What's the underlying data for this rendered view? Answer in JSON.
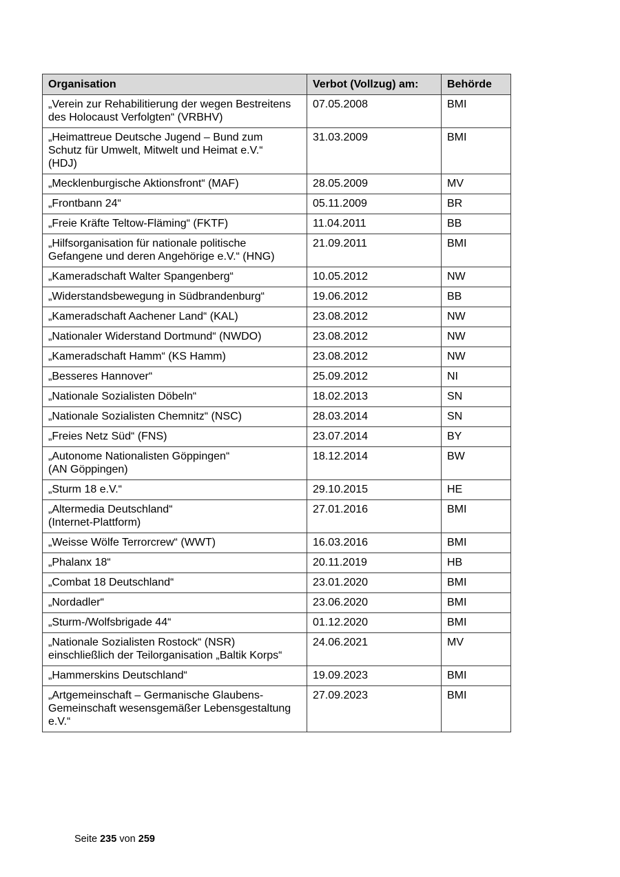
{
  "table": {
    "headers": [
      "Organisation",
      "Verbot (Vollzug) am:",
      "Behörde"
    ],
    "rows": [
      [
        "„Verein zur Rehabilitierung der wegen Bestreitens\ndes Holocaust Verfolgten“ (VRBHV)",
        "07.05.2008",
        "BMI"
      ],
      [
        "„Heimattreue Deutsche Jugend – Bund zum\nSchutz für Umwelt, Mitwelt und Heimat e.V.“\n(HDJ)",
        "31.03.2009",
        "BMI"
      ],
      [
        "„Mecklenburgische Aktionsfront“ (MAF)",
        "28.05.2009",
        "MV"
      ],
      [
        "„Frontbann 24“",
        "05.11.2009",
        "BR"
      ],
      [
        "„Freie Kräfte Teltow-Fläming“ (FKTF)",
        "11.04.2011",
        "BB"
      ],
      [
        "„Hilfsorganisation für nationale politische\nGefangene und deren Angehörige e.V.“ (HNG)",
        "21.09.2011",
        "BMI"
      ],
      [
        "„Kameradschaft Walter Spangenberg“",
        "10.05.2012",
        "NW"
      ],
      [
        "„Widerstandsbewegung in Südbrandenburg“",
        "19.06.2012",
        "BB"
      ],
      [
        "„Kameradschaft Aachener Land“ (KAL)",
        "23.08.2012",
        "NW"
      ],
      [
        "„Nationaler Widerstand Dortmund“ (NWDO)",
        "23.08.2012",
        "NW"
      ],
      [
        "„Kameradschaft Hamm“ (KS Hamm)",
        "23.08.2012",
        "NW"
      ],
      [
        "„Besseres Hannover“",
        "25.09.2012",
        "NI"
      ],
      [
        "„Nationale Sozialisten Döbeln“",
        "18.02.2013",
        "SN"
      ],
      [
        "„Nationale Sozialisten Chemnitz“ (NSC)",
        "28.03.2014",
        "SN"
      ],
      [
        "„Freies Netz Süd“ (FNS)",
        "23.07.2014",
        "BY"
      ],
      [
        "„Autonome Nationalisten Göppingen“\n(AN Göppingen)",
        "18.12.2014",
        "BW"
      ],
      [
        "„Sturm 18 e.V.“",
        "29.10.2015",
        "HE"
      ],
      [
        "„Altermedia Deutschland“\n(Internet-Plattform)",
        "27.01.2016",
        "BMI"
      ],
      [
        "„Weisse Wölfe Terrorcrew“ (WWT)",
        "16.03.2016",
        "BMI"
      ],
      [
        "„Phalanx 18“",
        "20.11.2019",
        "HB"
      ],
      [
        "„Combat 18 Deutschland“",
        "23.01.2020",
        "BMI"
      ],
      [
        "„Nordadler“",
        "23.06.2020",
        "BMI"
      ],
      [
        "„Sturm-/Wolfsbrigade 44“",
        "01.12.2020",
        "BMI"
      ],
      [
        "„Nationale Sozialisten Rostock“ (NSR)\neinschließlich der Teilorganisation „Baltik Korps“",
        "24.06.2021",
        "MV"
      ],
      [
        "„Hammerskins Deutschland“",
        "19.09.2023",
        "BMI"
      ],
      [
        "„Artgemeinschaft – Germanische Glaubens-\nGemeinschaft wesensgemäßer Lebensgestaltung\ne.V.“",
        "27.09.2023",
        "BMI"
      ]
    ]
  },
  "footer": {
    "prefix": "Seite",
    "page": "235",
    "middle": "von",
    "total": "259"
  }
}
